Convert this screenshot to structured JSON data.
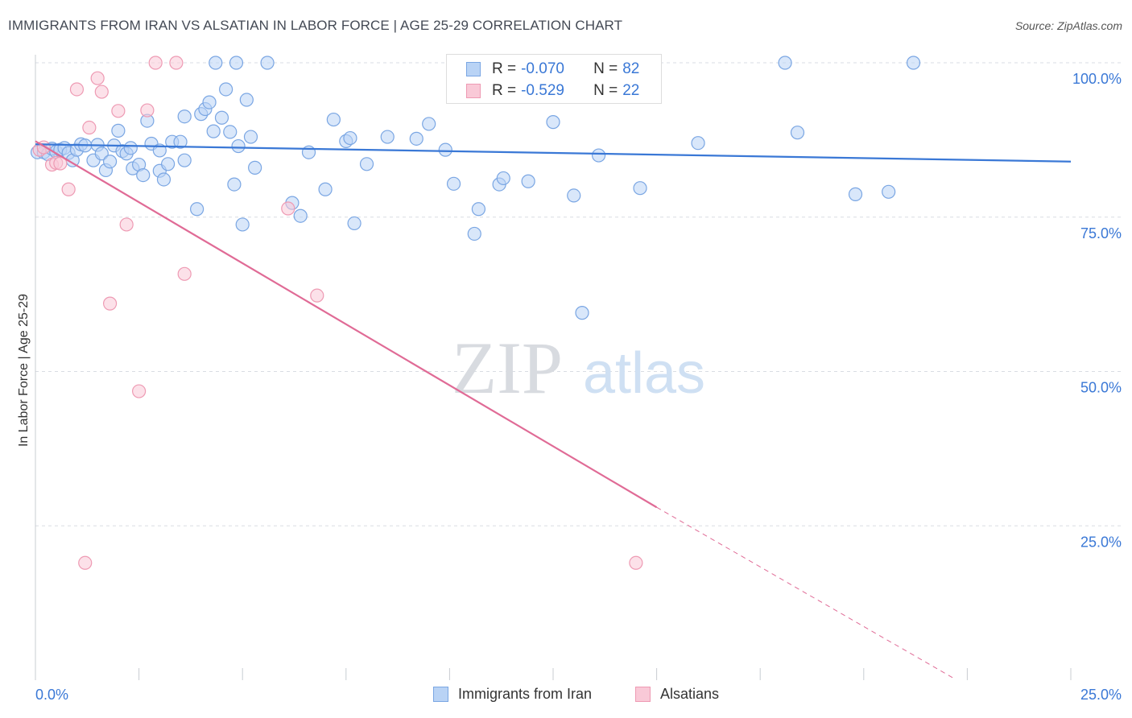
{
  "title": "IMMIGRANTS FROM IRAN VS ALSATIAN IN LABOR FORCE | AGE 25-29 CORRELATION CHART",
  "source": "Source: ZipAtlas.com",
  "watermark": {
    "zip": "ZIP",
    "atlas": "atlas"
  },
  "stats": {
    "iran": {
      "r_label": "R =",
      "r_value": "-0.070",
      "n_label": "N =",
      "n_value": "82"
    },
    "alsatian": {
      "r_label": "R =",
      "r_value": "-0.529",
      "n_label": "N =",
      "n_value": "22"
    }
  },
  "legend": {
    "iran": "Immigrants from Iran",
    "alsatian": "Alsatians"
  },
  "colors": {
    "iran_fill": "#b9d3f5",
    "iran_stroke": "#7aa6e3",
    "iran_line": "#3a78d6",
    "alsatian_fill": "#f9c9d7",
    "alsatian_stroke": "#ee9ab3",
    "alsatian_line": "#e06b96",
    "grid": "#d9dde3",
    "tick_label": "#3a78d6"
  },
  "chart_data": {
    "type": "scatter",
    "xlabel": "",
    "ylabel": "In Labor Force | Age 25-29",
    "xlim": [
      0,
      25
    ],
    "ylim": [
      0,
      100
    ],
    "x_tick_labels": [
      {
        "value": 0,
        "label": "0.0%"
      },
      {
        "value": 25,
        "label": "25.0%"
      }
    ],
    "y_tick_labels": [
      {
        "value": 100,
        "label": "100.0%"
      },
      {
        "value": 75,
        "label": "75.0%"
      },
      {
        "value": 50,
        "label": "50.0%"
      },
      {
        "value": 25,
        "label": "25.0%"
      }
    ],
    "grid": true,
    "series": [
      {
        "name": "Immigrants from Iran",
        "points": [
          [
            0.05,
            85.5
          ],
          [
            0.2,
            85.5
          ],
          [
            0.3,
            85.2
          ],
          [
            0.4,
            86.1
          ],
          [
            0.5,
            85.6
          ],
          [
            0.6,
            85.9
          ],
          [
            0.7,
            86.2
          ],
          [
            0.8,
            85.4
          ],
          [
            0.9,
            84.2
          ],
          [
            1.0,
            85.9
          ],
          [
            1.1,
            86.8
          ],
          [
            1.2,
            86.6
          ],
          [
            1.4,
            84.2
          ],
          [
            1.5,
            86.7
          ],
          [
            1.6,
            85.3
          ],
          [
            1.7,
            82.6
          ],
          [
            1.8,
            84.0
          ],
          [
            1.9,
            86.6
          ],
          [
            2.0,
            89.0
          ],
          [
            2.1,
            85.7
          ],
          [
            2.2,
            85.3
          ],
          [
            2.3,
            86.2
          ],
          [
            2.35,
            82.9
          ],
          [
            2.5,
            83.5
          ],
          [
            2.6,
            81.8
          ],
          [
            2.7,
            90.6
          ],
          [
            2.8,
            86.9
          ],
          [
            3.0,
            85.8
          ],
          [
            3.0,
            82.5
          ],
          [
            3.1,
            81.1
          ],
          [
            3.2,
            83.6
          ],
          [
            3.3,
            87.2
          ],
          [
            3.5,
            87.2
          ],
          [
            3.6,
            84.2
          ],
          [
            3.6,
            91.3
          ],
          [
            3.9,
            76.3
          ],
          [
            4.0,
            91.7
          ],
          [
            4.1,
            92.5
          ],
          [
            4.2,
            93.6
          ],
          [
            4.3,
            88.9
          ],
          [
            4.5,
            91.1
          ],
          [
            4.6,
            95.7
          ],
          [
            4.7,
            88.8
          ],
          [
            4.8,
            80.3
          ],
          [
            4.9,
            86.5
          ],
          [
            5.0,
            73.8
          ],
          [
            5.1,
            94.0
          ],
          [
            5.2,
            88.0
          ],
          [
            5.3,
            83.0
          ],
          [
            5.6,
            100.0
          ],
          [
            6.2,
            77.3
          ],
          [
            6.4,
            75.2
          ],
          [
            6.6,
            85.5
          ],
          [
            7.0,
            79.5
          ],
          [
            7.2,
            90.8
          ],
          [
            7.5,
            87.3
          ],
          [
            7.6,
            87.8
          ],
          [
            7.7,
            74.0
          ],
          [
            8.0,
            83.6
          ],
          [
            8.5,
            88.0
          ],
          [
            9.2,
            87.7
          ],
          [
            9.5,
            90.1
          ],
          [
            9.9,
            85.9
          ],
          [
            10.1,
            80.4
          ],
          [
            10.6,
            72.3
          ],
          [
            10.7,
            76.3
          ],
          [
            11.2,
            80.3
          ],
          [
            11.3,
            81.3
          ],
          [
            11.9,
            80.8
          ],
          [
            12.5,
            90.4
          ],
          [
            13.0,
            78.5
          ],
          [
            13.2,
            59.5
          ],
          [
            13.6,
            85.0
          ],
          [
            14.6,
            79.7
          ],
          [
            16.0,
            87.0
          ],
          [
            18.1,
            100.0
          ],
          [
            18.4,
            88.7
          ],
          [
            19.8,
            78.7
          ],
          [
            20.6,
            79.1
          ],
          [
            21.2,
            100.0
          ],
          [
            4.35,
            100.0
          ],
          [
            4.85,
            100.0
          ]
        ]
      },
      {
        "name": "Alsatians",
        "points": [
          [
            0.1,
            85.9
          ],
          [
            0.2,
            86.3
          ],
          [
            0.4,
            83.5
          ],
          [
            0.5,
            83.8
          ],
          [
            0.6,
            83.7
          ],
          [
            0.8,
            79.5
          ],
          [
            1.0,
            95.7
          ],
          [
            1.3,
            89.5
          ],
          [
            1.5,
            97.5
          ],
          [
            1.6,
            95.3
          ],
          [
            1.8,
            61.0
          ],
          [
            2.0,
            92.2
          ],
          [
            2.2,
            73.8
          ],
          [
            2.5,
            46.8
          ],
          [
            2.7,
            92.3
          ],
          [
            2.9,
            100.0
          ],
          [
            3.4,
            100.0
          ],
          [
            3.6,
            65.8
          ],
          [
            6.1,
            76.4
          ],
          [
            6.8,
            62.3
          ],
          [
            1.2,
            19.0
          ],
          [
            14.5,
            19.0
          ]
        ]
      }
    ],
    "trendlines": [
      {
        "series": "Immigrants from Iran",
        "x": [
          0,
          25
        ],
        "y": [
          86.8,
          84.0
        ],
        "style": "solid"
      },
      {
        "series": "Alsatians",
        "x": [
          0,
          15
        ],
        "y": [
          87.3,
          28.0
        ],
        "style": "solid"
      },
      {
        "series": "Alsatians",
        "x": [
          15,
          22.2
        ],
        "y": [
          28.0,
          0.2
        ],
        "style": "dashed"
      }
    ]
  }
}
